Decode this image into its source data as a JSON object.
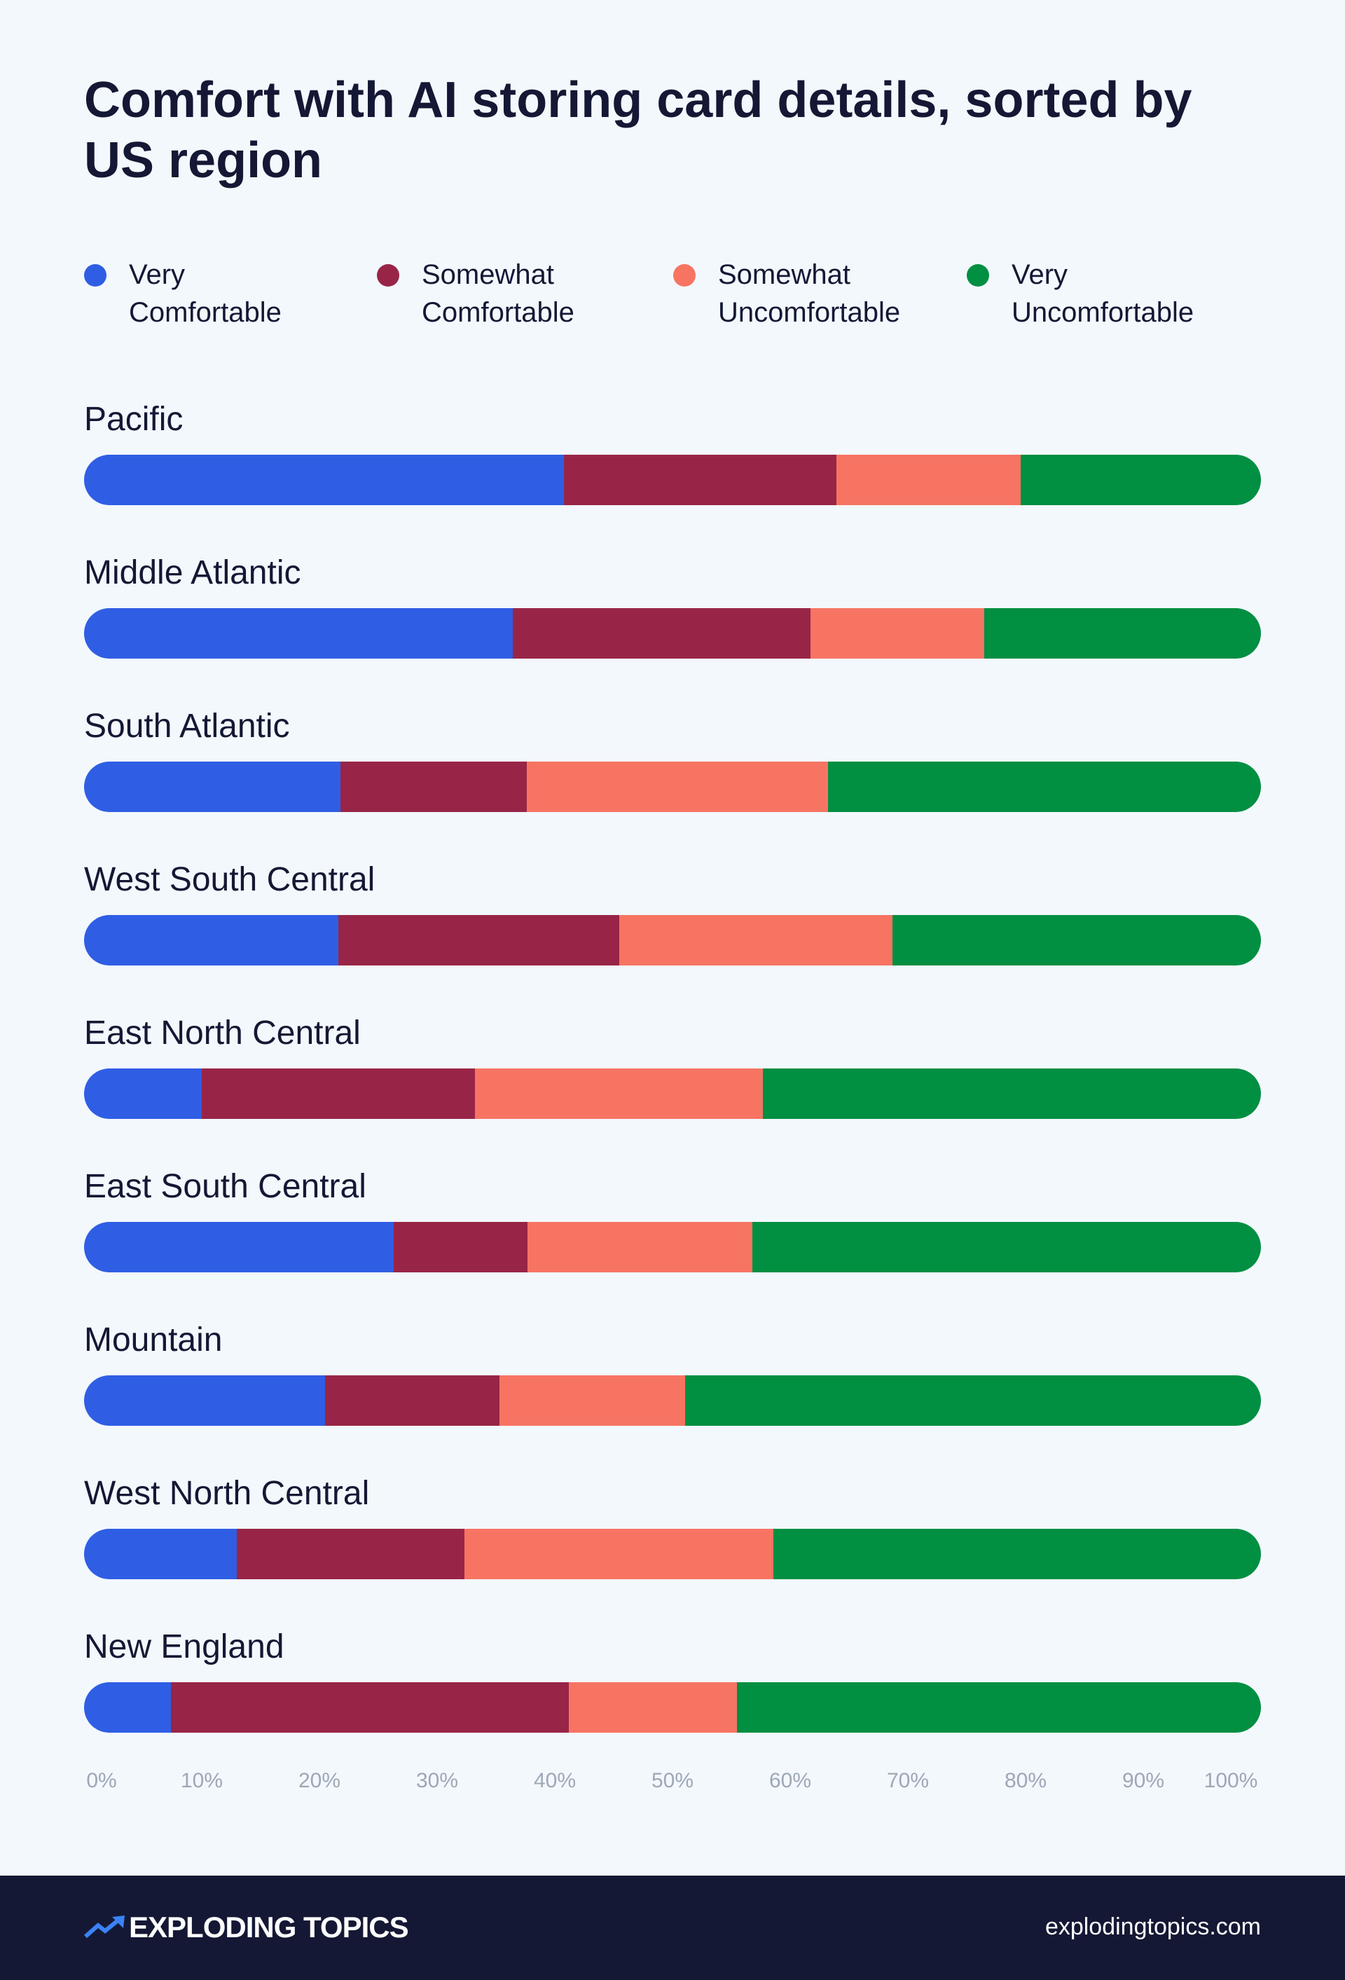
{
  "chart_data": {
    "type": "bar",
    "orientation": "horizontal",
    "stacked": true,
    "title": "Comfort with AI storing card details, sorted by US region",
    "categories": [
      "Pacific",
      "Middle Atlantic",
      "South Atlantic",
      "West South Central",
      "East North Central",
      "East South Central",
      "Mountain",
      "West North Central",
      "New England"
    ],
    "series": [
      {
        "name": "Very Comfortable",
        "color": "#2f5ee4",
        "values": [
          40.8,
          36.4,
          21.8,
          21.6,
          10.0,
          26.3,
          20.5,
          13.0,
          7.4
        ]
      },
      {
        "name": "Somewhat Comfortable",
        "color": "#982547",
        "values": [
          23.1,
          25.3,
          15.8,
          23.9,
          23.2,
          11.4,
          14.8,
          19.3,
          33.8
        ]
      },
      {
        "name": "Somewhat Uncomfortable",
        "color": "#f77463",
        "values": [
          15.7,
          14.8,
          25.6,
          23.2,
          24.5,
          19.1,
          15.8,
          26.3,
          14.3
        ]
      },
      {
        "name": "Very Uncomfortable",
        "color": "#018f42",
        "values": [
          20.4,
          23.5,
          36.8,
          31.3,
          42.3,
          43.2,
          48.9,
          41.4,
          44.5
        ]
      }
    ],
    "xlim": [
      0,
      100
    ],
    "xticks": [
      "0%",
      "10%",
      "20%",
      "30%",
      "40%",
      "50%",
      "60%",
      "70%",
      "80%",
      "90%",
      "100%"
    ],
    "legend_position": "top",
    "grid": false
  },
  "legend": [
    {
      "line1": "Very",
      "line2": "Comfortable"
    },
    {
      "line1": "Somewhat",
      "line2": "Comfortable"
    },
    {
      "line1": "Somewhat",
      "line2": "Uncomfortable"
    },
    {
      "line1": "Very",
      "line2": "Uncomfortable"
    }
  ],
  "footer": {
    "brand": "EXPLODING TOPICS",
    "site": "explodingtopics.com"
  }
}
